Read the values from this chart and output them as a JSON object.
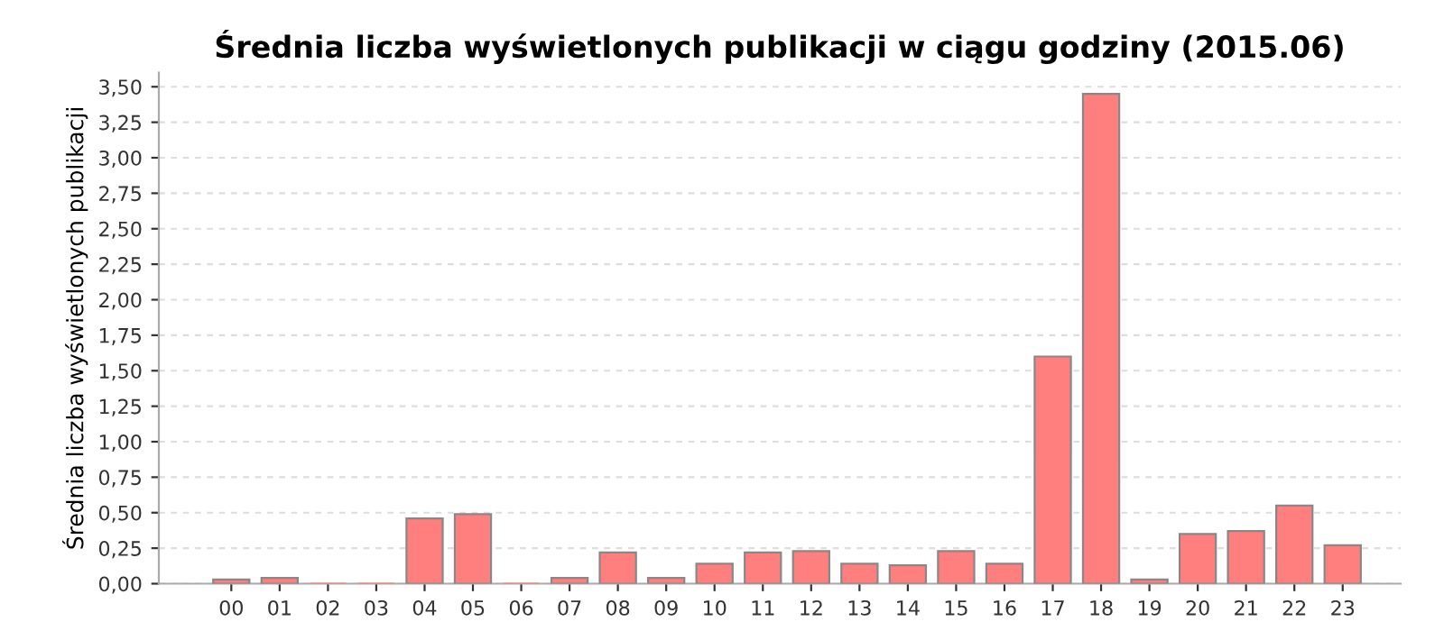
{
  "chart_data": {
    "type": "bar",
    "title": "Średnia liczba wyświetlonych publikacji w ciągu godziny (2015.06)",
    "ylabel": "Średnia liczba wyświetlonych publikacji",
    "categories": [
      "00",
      "01",
      "02",
      "03",
      "04",
      "05",
      "06",
      "07",
      "08",
      "09",
      "10",
      "11",
      "12",
      "13",
      "14",
      "15",
      "16",
      "17",
      "18",
      "19",
      "20",
      "21",
      "22",
      "23"
    ],
    "values": [
      0.03,
      0.04,
      0,
      0,
      0.46,
      0.49,
      0,
      0.04,
      0.22,
      0.04,
      0.14,
      0.22,
      0.23,
      0.14,
      0.13,
      0.23,
      0.14,
      1.6,
      3.45,
      0.03,
      0.35,
      0.37,
      0.55,
      0.27
    ],
    "color": "#ff7f7f",
    "ylim": [
      0,
      3.6
    ],
    "yticks": [
      {
        "value": 0,
        "label": "0,00"
      },
      {
        "value": 0.25,
        "label": "0,25"
      },
      {
        "value": 0.5,
        "label": "0,50"
      },
      {
        "value": 0.75,
        "label": "0,75"
      },
      {
        "value": 1,
        "label": "1,00"
      },
      {
        "value": 1.25,
        "label": "1,25"
      },
      {
        "value": 1.5,
        "label": "1,50"
      },
      {
        "value": 1.75,
        "label": "1,75"
      },
      {
        "value": 2,
        "label": "2,00"
      },
      {
        "value": 2.25,
        "label": "2,25"
      },
      {
        "value": 2.5,
        "label": "2,50"
      },
      {
        "value": 2.75,
        "label": "2,75"
      },
      {
        "value": 3,
        "label": "3,00"
      },
      {
        "value": 3.25,
        "label": "3,25"
      },
      {
        "value": 3.5,
        "label": "3,50"
      }
    ],
    "grid": "y"
  }
}
